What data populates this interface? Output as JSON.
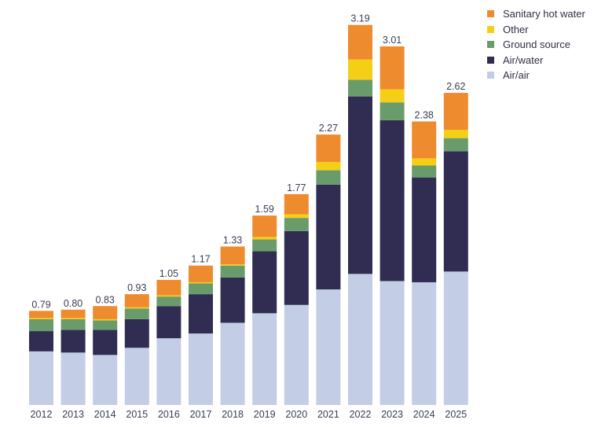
{
  "chart_data": {
    "type": "bar",
    "stacked": true,
    "title": "",
    "xlabel": "",
    "ylabel": "",
    "ylim": [
      0,
      3.3
    ],
    "grid": false,
    "legend_position": "top-right",
    "categories": [
      "2012",
      "2013",
      "2014",
      "2015",
      "2016",
      "2017",
      "2018",
      "2019",
      "2020",
      "2021",
      "2022",
      "2023",
      "2024",
      "2025"
    ],
    "totals": [
      "0.79",
      "0.80",
      "0.83",
      "0.93",
      "1.05",
      "1.17",
      "1.33",
      "1.59",
      "1.77",
      "2.27",
      "3.19",
      "3.01",
      "2.38",
      "2.62"
    ],
    "series": [
      {
        "name": "Air/air",
        "color": "#c3cde6",
        "values": [
          0.45,
          0.44,
          0.42,
          0.48,
          0.56,
          0.6,
          0.69,
          0.77,
          0.84,
          0.97,
          1.1,
          1.04,
          1.03,
          1.12
        ]
      },
      {
        "name": "Air/water",
        "color": "#302c52",
        "values": [
          0.17,
          0.19,
          0.21,
          0.24,
          0.27,
          0.33,
          0.38,
          0.52,
          0.62,
          0.88,
          1.49,
          1.35,
          0.88,
          1.01
        ]
      },
      {
        "name": "Ground source",
        "color": "#6a9b6b",
        "values": [
          0.1,
          0.09,
          0.08,
          0.09,
          0.08,
          0.09,
          0.1,
          0.1,
          0.11,
          0.12,
          0.14,
          0.15,
          0.1,
          0.11
        ]
      },
      {
        "name": "Other",
        "color": "#f5cf16",
        "values": [
          0.01,
          0.01,
          0.01,
          0.01,
          0.01,
          0.01,
          0.01,
          0.02,
          0.03,
          0.07,
          0.17,
          0.11,
          0.06,
          0.07
        ]
      },
      {
        "name": "Sanitary hot water",
        "color": "#ee8b2f",
        "values": [
          0.06,
          0.07,
          0.11,
          0.11,
          0.13,
          0.14,
          0.15,
          0.18,
          0.17,
          0.23,
          0.29,
          0.36,
          0.31,
          0.31
        ]
      }
    ],
    "legend": [
      "Sanitary hot water",
      "Other",
      "Ground source",
      "Air/water",
      "Air/air"
    ]
  }
}
